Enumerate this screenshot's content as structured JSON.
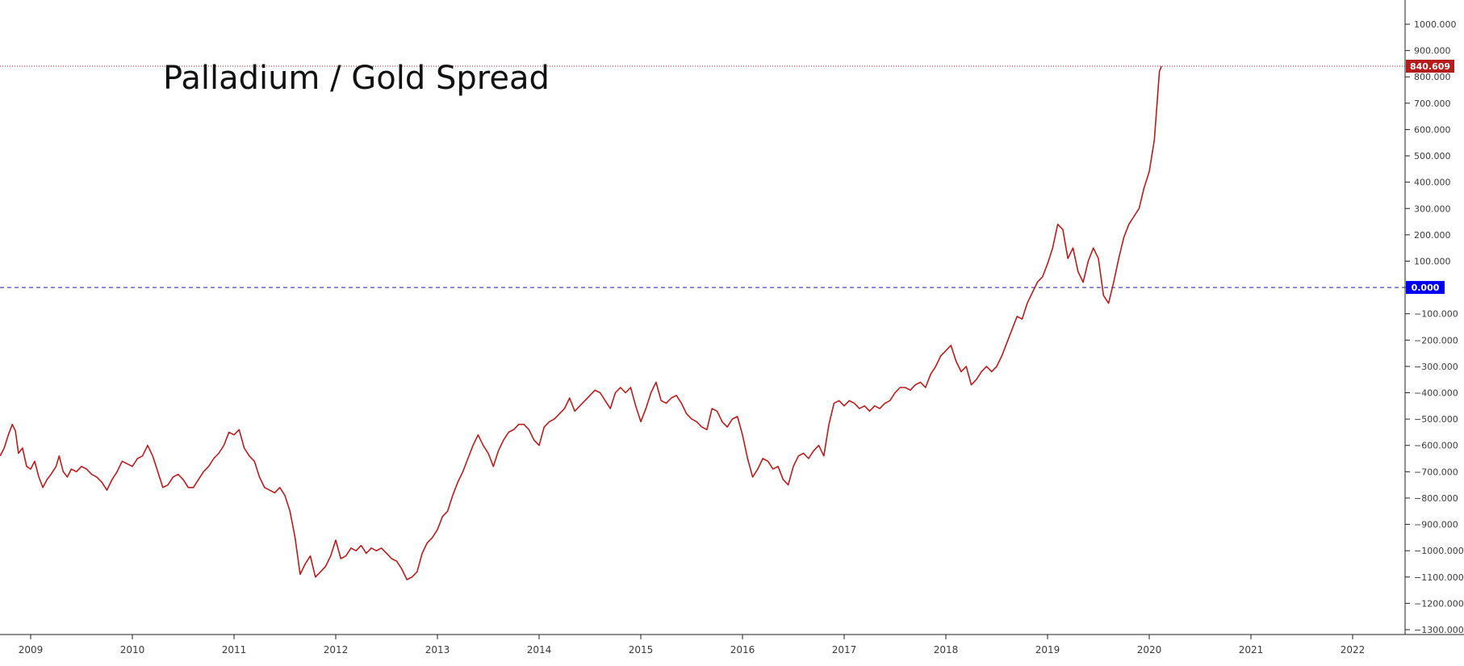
{
  "chart_data": {
    "type": "line",
    "title": "Palladium / Gold Spread",
    "xlabel": "",
    "ylabel": "",
    "x_ticks": [
      "2009",
      "2010",
      "2011",
      "2012",
      "2013",
      "2014",
      "2015",
      "2016",
      "2017",
      "2018",
      "2019",
      "2020",
      "2021",
      "2022"
    ],
    "xlim": [
      2008.7,
      2022.54
    ],
    "y_ticks": [
      "1000.000",
      "900.000",
      "800.000",
      "700.000",
      "600.000",
      "500.000",
      "400.000",
      "300.000",
      "200.000",
      "100.000",
      "0.000",
      "−100.000",
      "−200.000",
      "−300.000",
      "−400.000",
      "−500.000",
      "−600.000",
      "−700.000",
      "−800.000",
      "−900.000",
      "−1000.000",
      "−1100.000",
      "−1200.000",
      "−1300.000"
    ],
    "ylim": [
      -1335,
      1065
    ],
    "grid": false,
    "last_value_label": "840.609",
    "zero_label": "0.000",
    "colors": {
      "line": "#b71c1c",
      "last_value_bg": "#b71c1c",
      "zero_line": "#1a1aaa",
      "zero_label_bg": "#0000ee",
      "axis_text": "#3a3a3a",
      "border": "#222222"
    },
    "series": [
      {
        "values": [
          [
            2008.7,
            -640
          ],
          [
            2008.74,
            -610
          ],
          [
            2008.78,
            -560
          ],
          [
            2008.82,
            -520
          ],
          [
            2008.85,
            -545
          ],
          [
            2008.88,
            -630
          ],
          [
            2008.92,
            -610
          ],
          [
            2008.96,
            -680
          ],
          [
            2009.0,
            -690
          ],
          [
            2009.04,
            -660
          ],
          [
            2009.08,
            -720
          ],
          [
            2009.12,
            -760
          ],
          [
            2009.16,
            -730
          ],
          [
            2009.2,
            -710
          ],
          [
            2009.25,
            -680
          ],
          [
            2009.28,
            -640
          ],
          [
            2009.32,
            -700
          ],
          [
            2009.36,
            -720
          ],
          [
            2009.4,
            -690
          ],
          [
            2009.45,
            -700
          ],
          [
            2009.5,
            -680
          ],
          [
            2009.55,
            -690
          ],
          [
            2009.6,
            -710
          ],
          [
            2009.65,
            -720
          ],
          [
            2009.7,
            -740
          ],
          [
            2009.75,
            -770
          ],
          [
            2009.8,
            -730
          ],
          [
            2009.85,
            -700
          ],
          [
            2009.9,
            -660
          ],
          [
            2009.95,
            -670
          ],
          [
            2010.0,
            -680
          ],
          [
            2010.05,
            -650
          ],
          [
            2010.1,
            -640
          ],
          [
            2010.15,
            -600
          ],
          [
            2010.2,
            -640
          ],
          [
            2010.25,
            -700
          ],
          [
            2010.3,
            -760
          ],
          [
            2010.35,
            -750
          ],
          [
            2010.4,
            -720
          ],
          [
            2010.45,
            -710
          ],
          [
            2010.5,
            -730
          ],
          [
            2010.55,
            -760
          ],
          [
            2010.6,
            -760
          ],
          [
            2010.65,
            -730
          ],
          [
            2010.7,
            -700
          ],
          [
            2010.75,
            -680
          ],
          [
            2010.8,
            -650
          ],
          [
            2010.85,
            -630
          ],
          [
            2010.9,
            -600
          ],
          [
            2010.95,
            -550
          ],
          [
            2011.0,
            -560
          ],
          [
            2011.05,
            -540
          ],
          [
            2011.1,
            -610
          ],
          [
            2011.15,
            -640
          ],
          [
            2011.2,
            -660
          ],
          [
            2011.25,
            -720
          ],
          [
            2011.3,
            -760
          ],
          [
            2011.35,
            -770
          ],
          [
            2011.4,
            -780
          ],
          [
            2011.45,
            -760
          ],
          [
            2011.5,
            -790
          ],
          [
            2011.55,
            -850
          ],
          [
            2011.6,
            -950
          ],
          [
            2011.65,
            -1090
          ],
          [
            2011.7,
            -1050
          ],
          [
            2011.75,
            -1020
          ],
          [
            2011.8,
            -1100
          ],
          [
            2011.85,
            -1080
          ],
          [
            2011.9,
            -1060
          ],
          [
            2011.95,
            -1020
          ],
          [
            2012.0,
            -960
          ],
          [
            2012.05,
            -1030
          ],
          [
            2012.1,
            -1020
          ],
          [
            2012.15,
            -990
          ],
          [
            2012.2,
            -1000
          ],
          [
            2012.25,
            -980
          ],
          [
            2012.3,
            -1010
          ],
          [
            2012.35,
            -990
          ],
          [
            2012.4,
            -1000
          ],
          [
            2012.45,
            -990
          ],
          [
            2012.5,
            -1010
          ],
          [
            2012.55,
            -1030
          ],
          [
            2012.6,
            -1040
          ],
          [
            2012.65,
            -1070
          ],
          [
            2012.7,
            -1110
          ],
          [
            2012.75,
            -1100
          ],
          [
            2012.8,
            -1080
          ],
          [
            2012.85,
            -1010
          ],
          [
            2012.9,
            -970
          ],
          [
            2012.95,
            -950
          ],
          [
            2013.0,
            -920
          ],
          [
            2013.05,
            -870
          ],
          [
            2013.1,
            -850
          ],
          [
            2013.15,
            -790
          ],
          [
            2013.2,
            -740
          ],
          [
            2013.25,
            -700
          ],
          [
            2013.3,
            -650
          ],
          [
            2013.35,
            -600
          ],
          [
            2013.4,
            -560
          ],
          [
            2013.45,
            -600
          ],
          [
            2013.5,
            -630
          ],
          [
            2013.55,
            -680
          ],
          [
            2013.6,
            -620
          ],
          [
            2013.65,
            -580
          ],
          [
            2013.7,
            -550
          ],
          [
            2013.75,
            -540
          ],
          [
            2013.8,
            -520
          ],
          [
            2013.85,
            -520
          ],
          [
            2013.9,
            -540
          ],
          [
            2013.95,
            -580
          ],
          [
            2014.0,
            -600
          ],
          [
            2014.05,
            -530
          ],
          [
            2014.1,
            -510
          ],
          [
            2014.15,
            -500
          ],
          [
            2014.2,
            -480
          ],
          [
            2014.25,
            -460
          ],
          [
            2014.3,
            -420
          ],
          [
            2014.35,
            -470
          ],
          [
            2014.4,
            -450
          ],
          [
            2014.45,
            -430
          ],
          [
            2014.5,
            -410
          ],
          [
            2014.55,
            -390
          ],
          [
            2014.6,
            -400
          ],
          [
            2014.65,
            -430
          ],
          [
            2014.7,
            -460
          ],
          [
            2014.75,
            -400
          ],
          [
            2014.8,
            -380
          ],
          [
            2014.85,
            -400
          ],
          [
            2014.9,
            -380
          ],
          [
            2014.95,
            -450
          ],
          [
            2015.0,
            -510
          ],
          [
            2015.05,
            -460
          ],
          [
            2015.1,
            -400
          ],
          [
            2015.15,
            -360
          ],
          [
            2015.2,
            -430
          ],
          [
            2015.25,
            -440
          ],
          [
            2015.3,
            -420
          ],
          [
            2015.35,
            -410
          ],
          [
            2015.4,
            -440
          ],
          [
            2015.45,
            -480
          ],
          [
            2015.5,
            -500
          ],
          [
            2015.55,
            -510
          ],
          [
            2015.6,
            -530
          ],
          [
            2015.65,
            -540
          ],
          [
            2015.7,
            -460
          ],
          [
            2015.75,
            -470
          ],
          [
            2015.8,
            -510
          ],
          [
            2015.85,
            -530
          ],
          [
            2015.9,
            -500
          ],
          [
            2015.95,
            -490
          ],
          [
            2016.0,
            -560
          ],
          [
            2016.05,
            -650
          ],
          [
            2016.1,
            -720
          ],
          [
            2016.15,
            -690
          ],
          [
            2016.2,
            -650
          ],
          [
            2016.25,
            -660
          ],
          [
            2016.3,
            -690
          ],
          [
            2016.35,
            -680
          ],
          [
            2016.4,
            -730
          ],
          [
            2016.45,
            -750
          ],
          [
            2016.5,
            -680
          ],
          [
            2016.55,
            -640
          ],
          [
            2016.6,
            -630
          ],
          [
            2016.65,
            -650
          ],
          [
            2016.7,
            -620
          ],
          [
            2016.75,
            -600
          ],
          [
            2016.8,
            -640
          ],
          [
            2016.85,
            -520
          ],
          [
            2016.9,
            -440
          ],
          [
            2016.95,
            -430
          ],
          [
            2017.0,
            -450
          ],
          [
            2017.05,
            -430
          ],
          [
            2017.1,
            -440
          ],
          [
            2017.15,
            -460
          ],
          [
            2017.2,
            -450
          ],
          [
            2017.25,
            -470
          ],
          [
            2017.3,
            -450
          ],
          [
            2017.35,
            -460
          ],
          [
            2017.4,
            -440
          ],
          [
            2017.45,
            -430
          ],
          [
            2017.5,
            -400
          ],
          [
            2017.55,
            -380
          ],
          [
            2017.6,
            -380
          ],
          [
            2017.65,
            -390
          ],
          [
            2017.7,
            -370
          ],
          [
            2017.75,
            -360
          ],
          [
            2017.8,
            -380
          ],
          [
            2017.85,
            -330
          ],
          [
            2017.9,
            -300
          ],
          [
            2017.95,
            -260
          ],
          [
            2018.0,
            -240
          ],
          [
            2018.05,
            -220
          ],
          [
            2018.1,
            -280
          ],
          [
            2018.15,
            -320
          ],
          [
            2018.2,
            -300
          ],
          [
            2018.25,
            -370
          ],
          [
            2018.3,
            -350
          ],
          [
            2018.35,
            -320
          ],
          [
            2018.4,
            -300
          ],
          [
            2018.45,
            -320
          ],
          [
            2018.5,
            -300
          ],
          [
            2018.55,
            -260
          ],
          [
            2018.6,
            -210
          ],
          [
            2018.65,
            -160
          ],
          [
            2018.7,
            -110
          ],
          [
            2018.75,
            -120
          ],
          [
            2018.8,
            -60
          ],
          [
            2018.85,
            -20
          ],
          [
            2018.9,
            20
          ],
          [
            2018.95,
            40
          ],
          [
            2019.0,
            90
          ],
          [
            2019.05,
            150
          ],
          [
            2019.1,
            240
          ],
          [
            2019.15,
            220
          ],
          [
            2019.2,
            110
          ],
          [
            2019.25,
            150
          ],
          [
            2019.3,
            60
          ],
          [
            2019.35,
            20
          ],
          [
            2019.4,
            100
          ],
          [
            2019.45,
            150
          ],
          [
            2019.5,
            110
          ],
          [
            2019.55,
            -30
          ],
          [
            2019.6,
            -60
          ],
          [
            2019.65,
            20
          ],
          [
            2019.7,
            110
          ],
          [
            2019.75,
            190
          ],
          [
            2019.8,
            240
          ],
          [
            2019.85,
            270
          ],
          [
            2019.9,
            300
          ],
          [
            2019.95,
            380
          ],
          [
            2020.0,
            440
          ],
          [
            2020.05,
            560
          ],
          [
            2020.1,
            820
          ],
          [
            2020.12,
            840.609
          ]
        ]
      }
    ]
  }
}
